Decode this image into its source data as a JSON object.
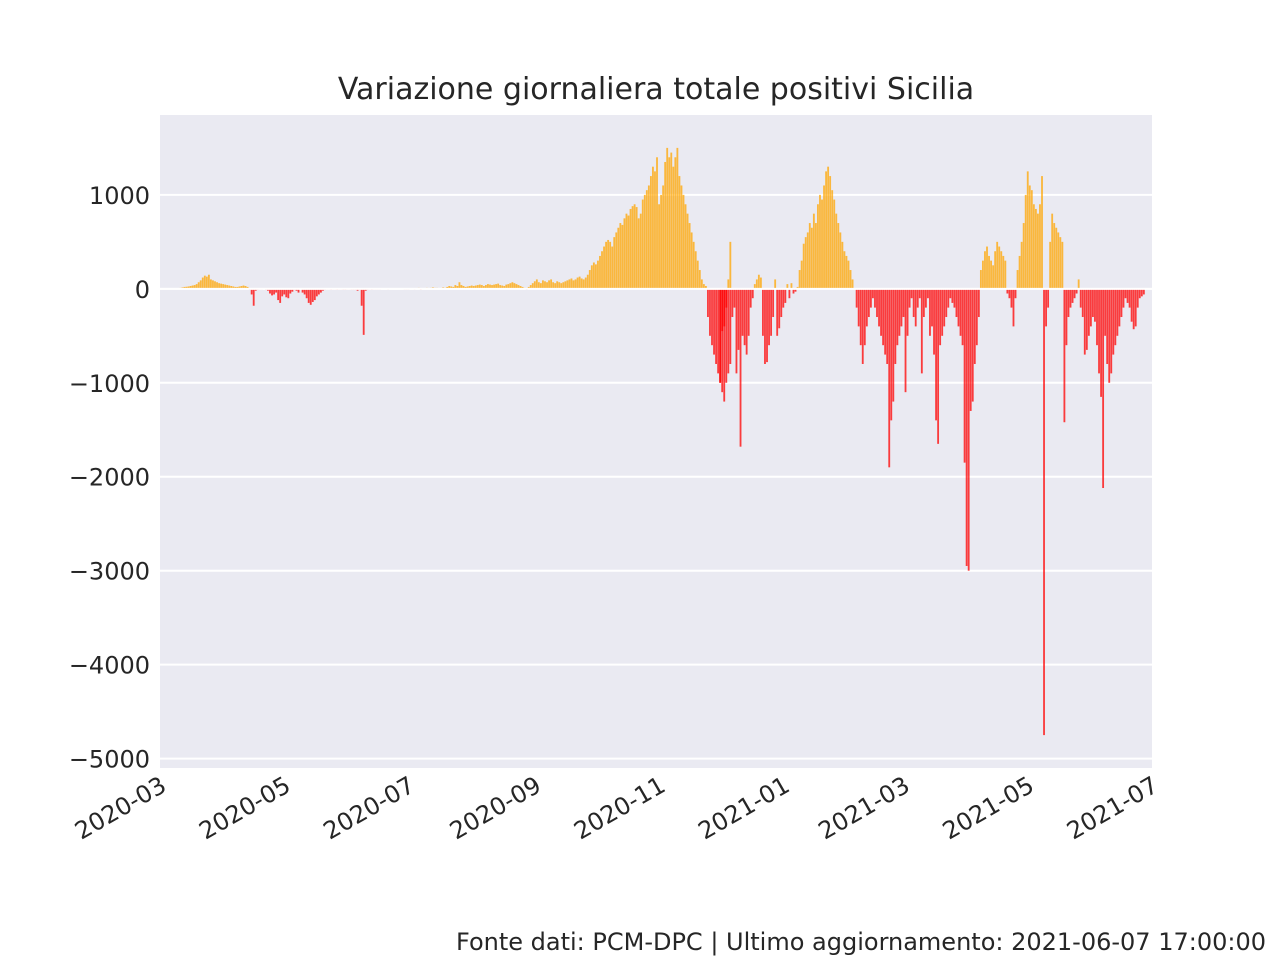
{
  "footer": "Fonte dati: PCM-DPC | Ultimo aggiornamento: 2021-06-07 17:00:00",
  "chart_data": {
    "type": "bar",
    "title": "Variazione giornaliera totale positivi Sicilia",
    "xlabel": "",
    "ylabel": "",
    "x_axis": "date",
    "xlim": [
      "2020-03-01",
      "2021-07-01"
    ],
    "ylim": [
      -5100,
      1850
    ],
    "y_ticks": [
      1000,
      0,
      -1000,
      -2000,
      -3000,
      -4000,
      -5000
    ],
    "y_tick_labels": [
      "1000",
      "0",
      "−1000",
      "−2000",
      "−3000",
      "−4000",
      "−5000"
    ],
    "x_tick_labels": [
      "2020-03",
      "2020-05",
      "2020-07",
      "2020-09",
      "2020-11",
      "2021-01",
      "2021-03",
      "2021-05",
      "2021-07"
    ],
    "grid": true,
    "background": "#eaeaf2",
    "colors": {
      "positive": "#ffa500",
      "negative": "#ff0000"
    },
    "bar_opacity": 0.75,
    "segments": [
      [
        "2020-03-10",
        [
          5,
          10,
          15,
          20,
          22,
          25,
          30,
          35,
          40,
          50,
          70,
          90,
          120,
          140,
          130,
          150,
          100,
          90,
          80,
          70,
          60,
          55,
          50,
          45,
          40,
          35,
          30,
          25,
          20,
          20,
          25,
          30,
          35,
          30,
          20,
          -10,
          -60,
          -180,
          -20,
          -10,
          -5,
          -5,
          5,
          -10,
          -20,
          -50,
          -70,
          -60,
          -40,
          -120,
          -150,
          -80,
          -60,
          -90,
          -100,
          -50,
          -30,
          -10,
          -20,
          -40
        ]
      ],
      [
        "2020-05-10",
        [
          -40,
          -60,
          -100,
          -150,
          -170,
          -140,
          -120,
          -80,
          -60,
          -40,
          -20,
          -10,
          -5,
          -5,
          -10,
          -5,
          -5,
          -10,
          -5,
          -5,
          -10,
          -10,
          -5,
          -5,
          -10,
          -10,
          -10,
          -20,
          -10,
          -180,
          -490,
          -20,
          -10,
          -5,
          -10,
          -5,
          -5,
          -5,
          -5,
          0,
          5,
          5,
          -5,
          5,
          5,
          5,
          5,
          5,
          5,
          5,
          -5,
          -5,
          -5,
          5,
          5,
          -5,
          5,
          10,
          -10,
          5
        ]
      ],
      [
        "2020-07-10",
        [
          10,
          5,
          10,
          15,
          10,
          10,
          5,
          5,
          15,
          10,
          20,
          30,
          25,
          20,
          40,
          30,
          70,
          40,
          30,
          20,
          25,
          30,
          35,
          30,
          35,
          40,
          45,
          40,
          30,
          40,
          50,
          45,
          40,
          45,
          50,
          55,
          40,
          35,
          30,
          45,
          50,
          60,
          70,
          60,
          50,
          40,
          30,
          20,
          10,
          -10,
          20,
          40,
          60,
          80,
          100,
          70,
          60,
          90,
          80,
          70
        ]
      ],
      [
        "2020-09-08",
        [
          90,
          100,
          70,
          60,
          80,
          70,
          60,
          70,
          80,
          90,
          100,
          110,
          90,
          100,
          120,
          130,
          110,
          100,
          120,
          150,
          200,
          250,
          280,
          260,
          300,
          350,
          400,
          450,
          500,
          520
        ]
      ],
      [
        "2020-10-08",
        [
          500,
          450,
          550,
          600,
          650,
          700,
          680,
          750,
          800,
          780,
          850,
          880,
          900,
          870,
          750,
          800,
          950,
          1000,
          1050,
          1100,
          1200,
          1300,
          1250,
          1400,
          900,
          1000,
          1100,
          1350,
          1500,
          1400
        ]
      ],
      [
        "2020-11-07",
        [
          1450,
          1300,
          1400,
          1500,
          1200,
          1100,
          1000,
          900,
          800,
          700,
          600,
          500,
          400,
          300,
          200,
          100,
          50,
          30,
          -300,
          -500,
          -600,
          -700,
          -800,
          -900,
          -1000,
          -1100,
          -1200,
          -1000,
          -900,
          -800
        ]
      ],
      [
        "2020-12-01",
        [
          -1000,
          -450,
          -400,
          -200,
          100,
          500,
          -300,
          -200,
          -900,
          -650,
          -1680,
          -500,
          -600,
          -700,
          -500,
          -200,
          -100,
          50,
          100,
          150,
          120,
          -500,
          -800,
          -780,
          -600,
          -500,
          -300,
          100,
          -500,
          -420,
          -300,
          -200,
          -150,
          50,
          -100,
          60,
          -50,
          -30,
          20
        ]
      ],
      [
        "2021-01-09",
        [
          200,
          300,
          480,
          550,
          600,
          700,
          650,
          800,
          700,
          900,
          1000,
          950,
          1100,
          1250,
          1300,
          1200,
          1050,
          950,
          800,
          700,
          600,
          500,
          400,
          350,
          300,
          200,
          100,
          0,
          -200,
          -400,
          -600,
          -800,
          -600,
          -400,
          -300,
          -200,
          -100,
          -200,
          -300,
          -400
        ]
      ],
      [
        "2021-02-18",
        [
          -500,
          -600,
          -700,
          -800,
          -1900,
          -1400,
          -1200,
          -800,
          -600,
          -500,
          -400,
          -300,
          -1100,
          -500,
          -200,
          -100,
          -300,
          -400,
          -200,
          -100,
          -900,
          -300,
          -200,
          -100,
          -500,
          -400,
          -700,
          -1400,
          -1650,
          -600,
          -500,
          -400,
          -300,
          -200,
          -100,
          -150,
          -200,
          -300,
          -400,
          -500
        ]
      ],
      [
        "2021-03-30",
        [
          -600,
          -1850,
          -2950,
          -3000,
          -1300,
          -1200,
          -800,
          -600,
          -300,
          200,
          300,
          400,
          450,
          350,
          300,
          250,
          400,
          500,
          450,
          400,
          350,
          300,
          -50,
          -100,
          -200,
          -400,
          -100,
          200,
          350,
          500,
          700,
          1000,
          1250,
          1100,
          1050,
          900,
          850,
          800,
          900,
          1200,
          -4750,
          -400,
          -200,
          500,
          800,
          700,
          650,
          600,
          550,
          500,
          -1420,
          -600,
          -300,
          -200,
          -150,
          -100,
          -50,
          100,
          -200,
          -300
        ]
      ],
      [
        "2021-05-29",
        [
          -700,
          -650,
          -500,
          -400,
          -300,
          -350,
          -600,
          -900,
          -1150,
          -2120,
          -500,
          -800,
          -1000,
          -900,
          -700,
          -600,
          -500,
          -400,
          -300,
          -200,
          -100,
          -150,
          -200,
          -350,
          -430,
          -400,
          -200,
          -100,
          -80,
          -60
        ]
      ]
    ]
  }
}
